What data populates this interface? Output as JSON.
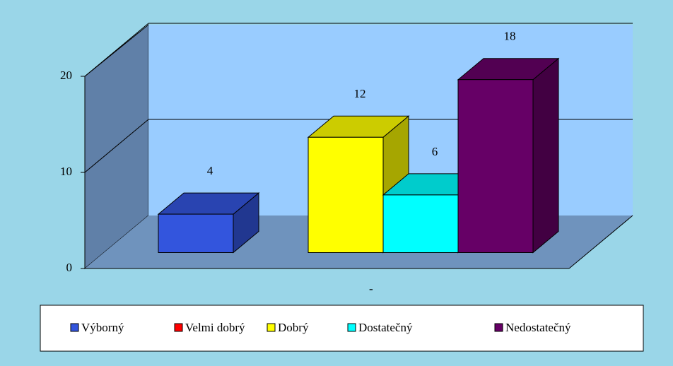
{
  "chart_data": {
    "type": "bar3d",
    "series": [
      {
        "name": "Výborný",
        "color": "#3355dd",
        "values": [
          4
        ]
      },
      {
        "name": "Velmi dobrý",
        "color": "#ff0000",
        "values": [
          0
        ]
      },
      {
        "name": "Dobrý",
        "color": "#ffff00",
        "values": [
          12
        ]
      },
      {
        "name": "Dostatečný",
        "color": "#00ffff",
        "values": [
          6
        ]
      },
      {
        "name": "Nedostatečný",
        "color": "#660066",
        "values": [
          18
        ]
      }
    ],
    "ylim": [
      0,
      20
    ],
    "yticks": [
      0,
      10,
      20
    ],
    "grid": true
  }
}
